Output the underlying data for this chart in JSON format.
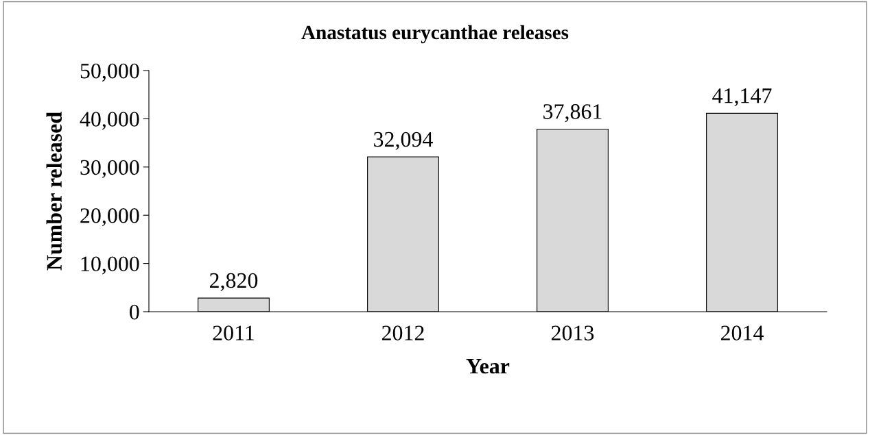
{
  "chart_data": {
    "type": "bar",
    "title": "Anastatus eurycanthae releases",
    "xlabel": "Year",
    "ylabel": "Number released",
    "categories": [
      "2011",
      "2012",
      "2013",
      "2014"
    ],
    "values": [
      2820,
      32094,
      37861,
      41147
    ],
    "value_labels": [
      "2,820",
      "32,094",
      "37,861",
      "41,147"
    ],
    "color": "#d9d9d9",
    "ylim": [
      0,
      50000
    ],
    "yticks": [
      {
        "value": 0,
        "label": "0"
      },
      {
        "value": 10000,
        "label": "10,000"
      },
      {
        "value": 20000,
        "label": "20,000"
      },
      {
        "value": 30000,
        "label": "30,000"
      },
      {
        "value": 40000,
        "label": "40,000"
      },
      {
        "value": 50000,
        "label": "50,000"
      }
    ],
    "grid": false,
    "legend": false
  }
}
